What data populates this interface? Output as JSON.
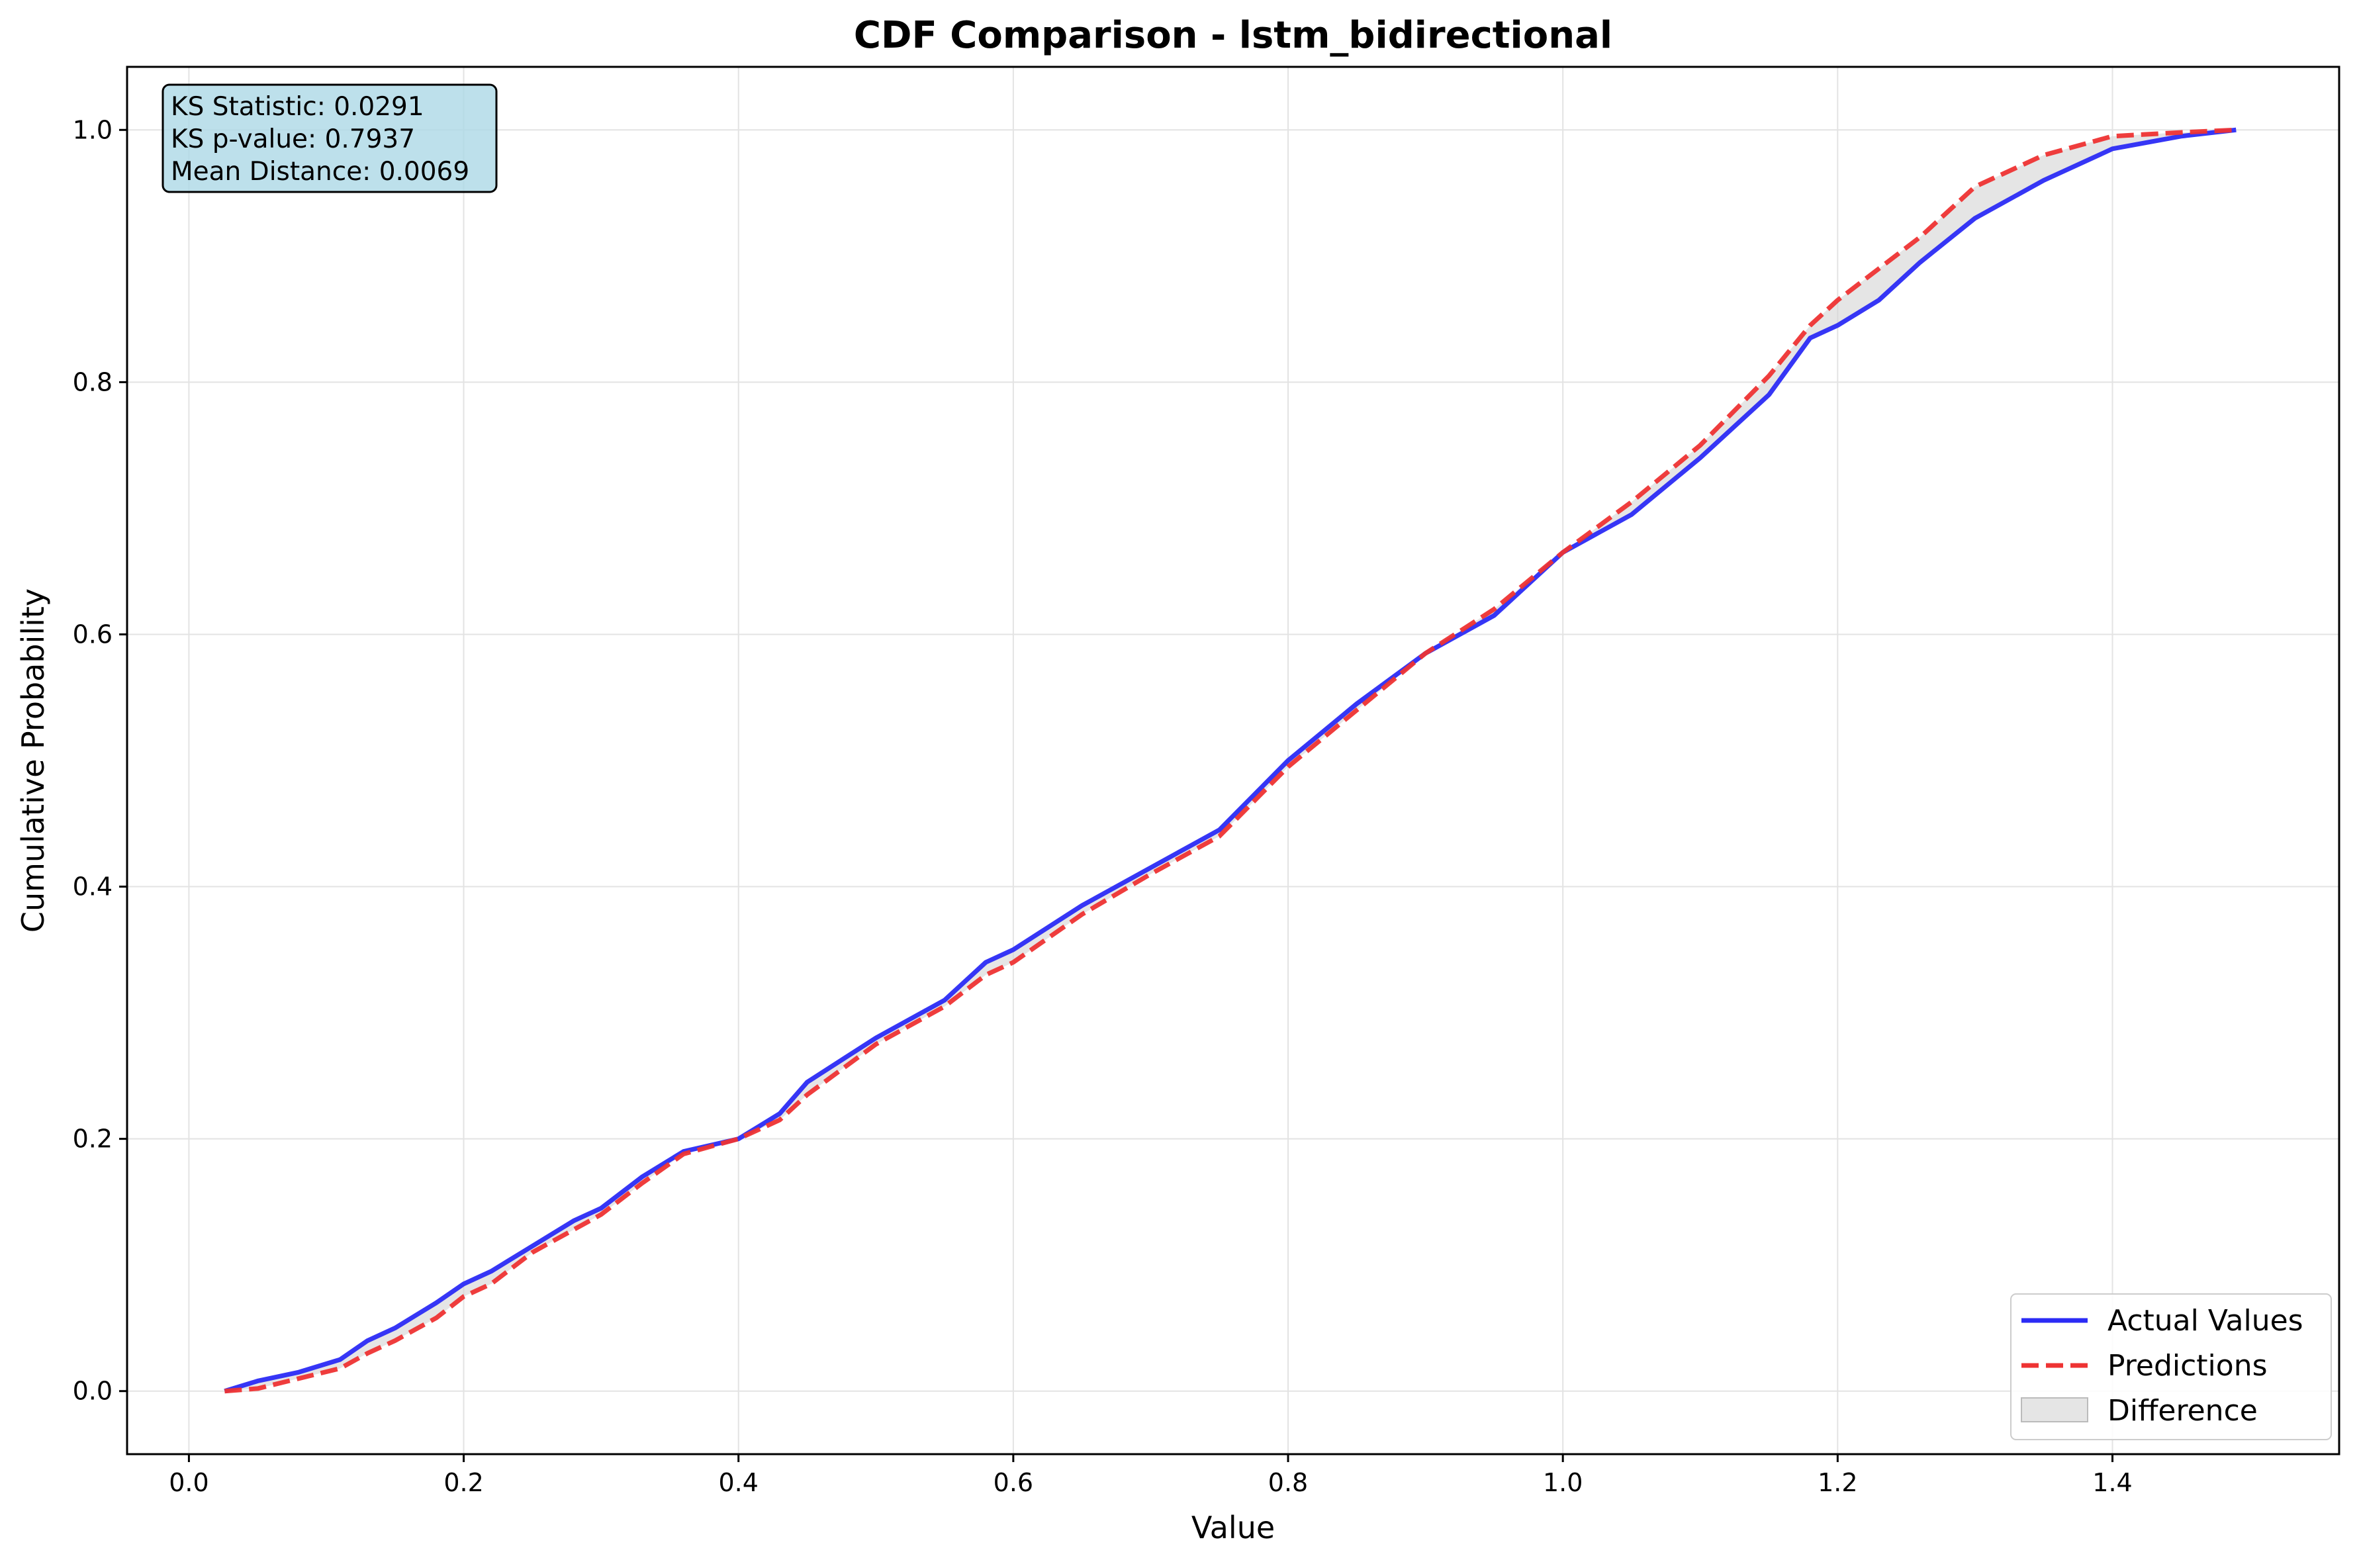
{
  "chart_data": {
    "type": "line",
    "title": "CDF Comparison - lstm_bidirectional",
    "xlabel": "Value",
    "ylabel": "Cumulative Probability",
    "xlim": [
      -0.045,
      1.565
    ],
    "ylim": [
      -0.05,
      1.05
    ],
    "xticks": [
      0.0,
      0.2,
      0.4,
      0.6,
      0.8,
      1.0,
      1.2,
      1.4
    ],
    "xtick_labels": [
      "0.0",
      "0.2",
      "0.4",
      "0.6",
      "0.8",
      "1.0",
      "1.2",
      "1.4"
    ],
    "yticks": [
      0.0,
      0.2,
      0.4,
      0.6,
      0.8,
      1.0
    ],
    "ytick_labels": [
      "0.0",
      "0.2",
      "0.4",
      "0.6",
      "0.8",
      "1.0"
    ],
    "grid": true,
    "legend_position": "lower-right",
    "stats": [
      "KS Statistic: 0.0291",
      "KS p-value: 0.7937",
      "Mean Distance: 0.0069"
    ],
    "series": [
      {
        "name": "Actual Values",
        "color": "#2b2bf5",
        "style": "solid",
        "x": [
          0.026,
          0.05,
          0.08,
          0.11,
          0.13,
          0.15,
          0.18,
          0.2,
          0.22,
          0.25,
          0.28,
          0.3,
          0.33,
          0.36,
          0.4,
          0.43,
          0.45,
          0.5,
          0.55,
          0.58,
          0.6,
          0.65,
          0.7,
          0.75,
          0.8,
          0.85,
          0.9,
          0.95,
          1.0,
          1.05,
          1.1,
          1.15,
          1.18,
          1.2,
          1.23,
          1.26,
          1.3,
          1.35,
          1.4,
          1.45,
          1.49
        ],
        "y": [
          0.0,
          0.008,
          0.015,
          0.025,
          0.04,
          0.05,
          0.07,
          0.085,
          0.095,
          0.115,
          0.135,
          0.145,
          0.17,
          0.19,
          0.2,
          0.22,
          0.245,
          0.28,
          0.31,
          0.34,
          0.35,
          0.385,
          0.415,
          0.445,
          0.5,
          0.545,
          0.585,
          0.615,
          0.665,
          0.695,
          0.74,
          0.79,
          0.835,
          0.845,
          0.865,
          0.895,
          0.93,
          0.96,
          0.985,
          0.995,
          1.0
        ]
      },
      {
        "name": "Predictions",
        "color": "#ee3333",
        "style": "dashed",
        "x": [
          0.026,
          0.05,
          0.08,
          0.11,
          0.13,
          0.15,
          0.18,
          0.2,
          0.22,
          0.25,
          0.28,
          0.3,
          0.33,
          0.36,
          0.4,
          0.43,
          0.45,
          0.5,
          0.55,
          0.58,
          0.6,
          0.65,
          0.7,
          0.75,
          0.8,
          0.85,
          0.9,
          0.95,
          1.0,
          1.05,
          1.1,
          1.15,
          1.18,
          1.2,
          1.23,
          1.26,
          1.3,
          1.35,
          1.4,
          1.45,
          1.49
        ],
        "y": [
          0.0,
          0.002,
          0.01,
          0.018,
          0.03,
          0.04,
          0.058,
          0.075,
          0.085,
          0.11,
          0.128,
          0.14,
          0.165,
          0.188,
          0.2,
          0.215,
          0.235,
          0.275,
          0.305,
          0.33,
          0.34,
          0.378,
          0.41,
          0.44,
          0.495,
          0.54,
          0.585,
          0.62,
          0.665,
          0.705,
          0.75,
          0.805,
          0.845,
          0.865,
          0.89,
          0.915,
          0.955,
          0.98,
          0.995,
          0.998,
          1.0
        ]
      }
    ],
    "fill_between": {
      "name": "Difference",
      "color": "#d3d3d3",
      "opacity": 0.6
    }
  }
}
